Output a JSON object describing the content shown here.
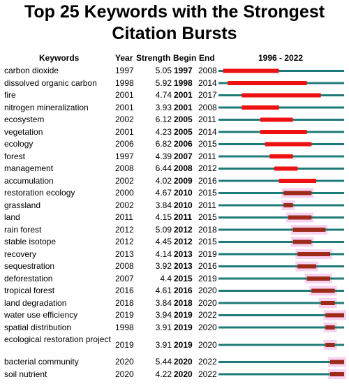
{
  "chart_data": {
    "type": "table",
    "title": "Top 25 Keywords with the Strongest Citation Bursts",
    "columns": [
      "Keywords",
      "Year",
      "Strength",
      "Begin",
      "End",
      "1996 - 2022"
    ],
    "timeline": {
      "start": 1996,
      "end": 2022
    },
    "rows": [
      {
        "keyword": "carbon dioxide",
        "year": 1997,
        "strength": "5.05",
        "begin": 1997,
        "end": 2008
      },
      {
        "keyword": "dissolved organic carbon",
        "year": 1998,
        "strength": "5.92",
        "begin": 1998,
        "end": 2014
      },
      {
        "keyword": "fire",
        "year": 2001,
        "strength": "4.74",
        "begin": 2001,
        "end": 2017
      },
      {
        "keyword": "nitrogen mineralization",
        "year": 2001,
        "strength": "3.93",
        "begin": 2001,
        "end": 2008
      },
      {
        "keyword": "ecosystem",
        "year": 2002,
        "strength": "6.12",
        "begin": 2005,
        "end": 2011
      },
      {
        "keyword": "vegetation",
        "year": 2001,
        "strength": "4.23",
        "begin": 2005,
        "end": 2014
      },
      {
        "keyword": "ecology",
        "year": 2006,
        "strength": "6.82",
        "begin": 2006,
        "end": 2015
      },
      {
        "keyword": "forest",
        "year": 1997,
        "strength": "4.39",
        "begin": 2007,
        "end": 2011
      },
      {
        "keyword": "management",
        "year": 2008,
        "strength": "6.44",
        "begin": 2008,
        "end": 2012
      },
      {
        "keyword": "accumulation",
        "year": 2002,
        "strength": "4.02",
        "begin": 2009,
        "end": 2016
      },
      {
        "keyword": "restoration ecology",
        "year": 2000,
        "strength": "4.67",
        "begin": 2010,
        "end": 2015
      },
      {
        "keyword": "grassland",
        "year": 2002,
        "strength": "3.84",
        "begin": 2010,
        "end": 2011
      },
      {
        "keyword": "land",
        "year": 2011,
        "strength": "4.15",
        "begin": 2011,
        "end": 2015
      },
      {
        "keyword": "rain forest",
        "year": 2012,
        "strength": "5.09",
        "begin": 2012,
        "end": 2018
      },
      {
        "keyword": "stable isotope",
        "year": 2012,
        "strength": "4.45",
        "begin": 2012,
        "end": 2015
      },
      {
        "keyword": "recovery",
        "year": 2013,
        "strength": "4.14",
        "begin": 2013,
        "end": 2019
      },
      {
        "keyword": "sequestration",
        "year": 2008,
        "strength": "3.92",
        "begin": 2013,
        "end": 2016
      },
      {
        "keyword": "deforestation",
        "year": 2007,
        "strength": "4.4",
        "begin": 2015,
        "end": 2019
      },
      {
        "keyword": "tropical forest",
        "year": 2016,
        "strength": "4.61",
        "begin": 2016,
        "end": 2020
      },
      {
        "keyword": "land degradation",
        "year": 2018,
        "strength": "3.84",
        "begin": 2018,
        "end": 2020
      },
      {
        "keyword": "water use efficiency",
        "year": 2019,
        "strength": "3.94",
        "begin": 2019,
        "end": 2022
      },
      {
        "keyword": "spatial distribution",
        "year": 1998,
        "strength": "3.91",
        "begin": 2019,
        "end": 2020
      },
      {
        "keyword": "ecological restoration project",
        "year": 2019,
        "strength": "3.91",
        "begin": 2019,
        "end": 2020
      },
      {
        "keyword": "bacterial community",
        "year": 2020,
        "strength": "5.44",
        "begin": 2020,
        "end": 2022
      },
      {
        "keyword": "soil nutrient",
        "year": 2020,
        "strength": "4.22",
        "begin": 2020,
        "end": 2022
      }
    ],
    "colors": {
      "baseline": "#1e7b78",
      "burst_early": "#ee1111",
      "burst_late": "#9e2a1a",
      "highlight": "#f4b4e8"
    }
  }
}
